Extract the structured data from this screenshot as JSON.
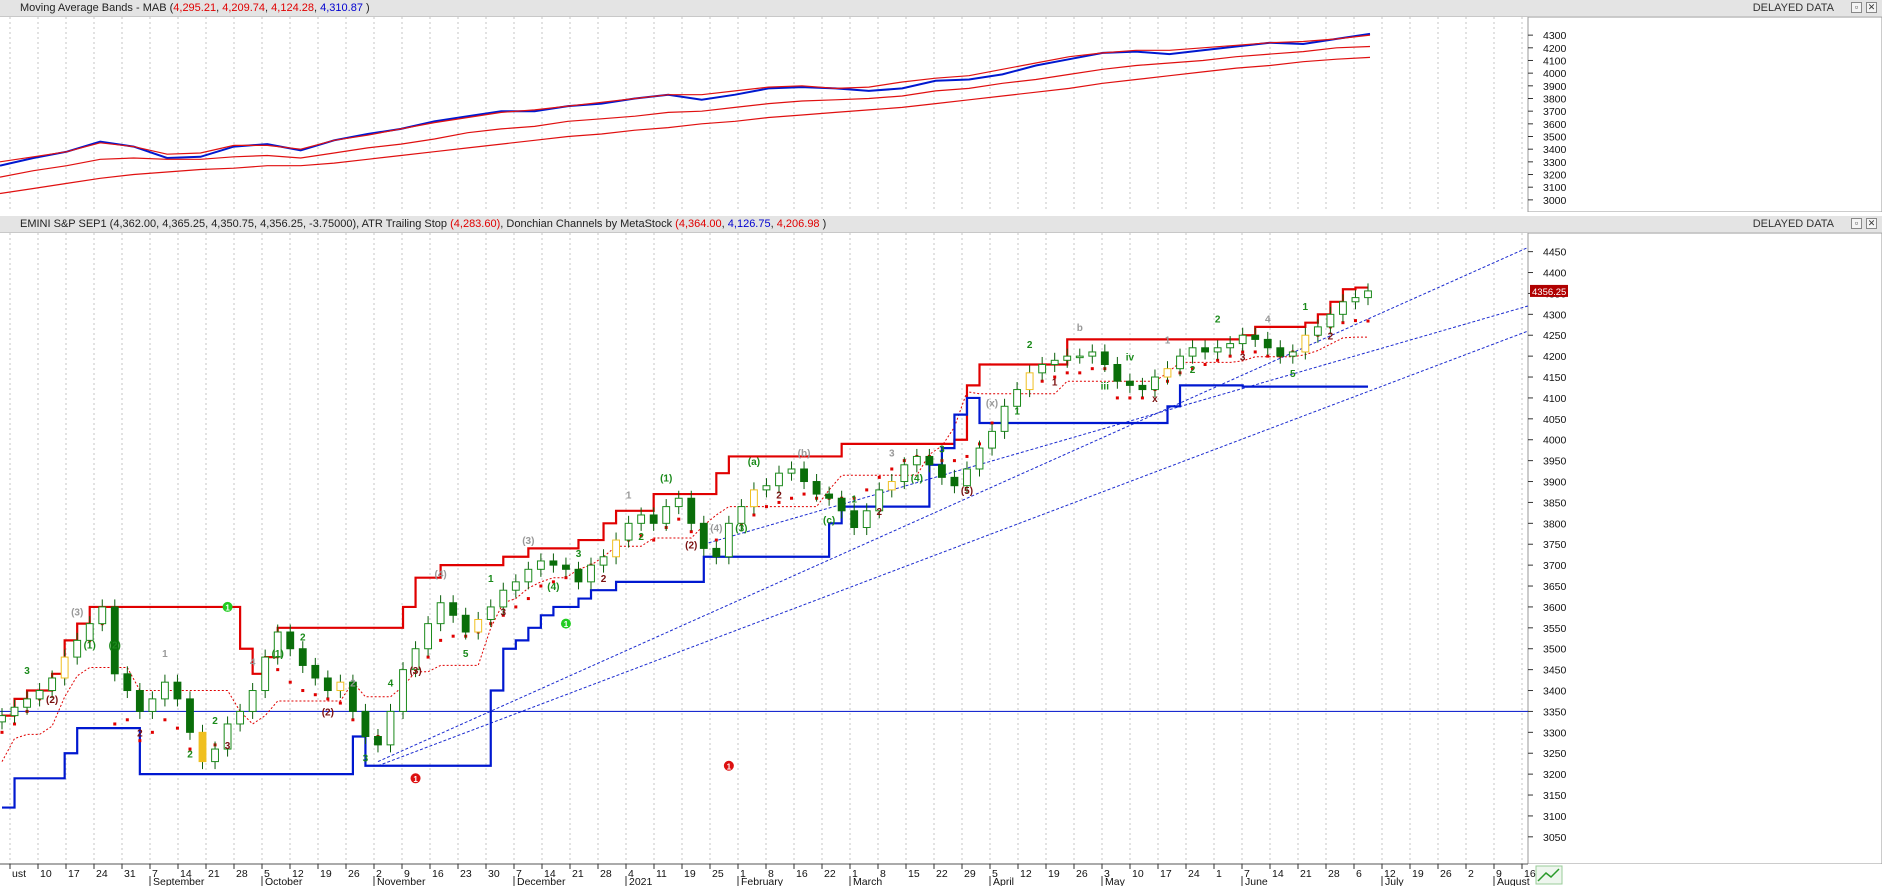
{
  "top_panel": {
    "title_prefix": "Moving Average Bands - MAB (",
    "values": [
      "4,295.21",
      "4,209.74",
      "4,124.28",
      "4,310.87"
    ],
    "title_suffix": ")",
    "delayed": "DELAYED DATA"
  },
  "bottom_panel": {
    "symbol": "EMINI S&P SEP1 (4,362.00, 4,365.25, 4,350.75, 4,356.25, -3.75000)",
    "atr_label": "ATR Trailing Stop",
    "atr_value": "(4,283.60)",
    "donchian_label": "Donchian Channels by MetaStock",
    "donchian_values": [
      "(4,364.00",
      "4,126.75",
      "4,206.98",
      ")"
    ],
    "delayed": "DELAYED DATA",
    "last_price_tag": "4356.25"
  },
  "window_buttons": [
    "restore-icon",
    "close-icon"
  ],
  "colors": {
    "price_up": "#1a8a1a",
    "price_down": "#0a6e0a",
    "neutral": "#f0c020",
    "atr": "#e00000",
    "donchian_upper": "#e00000",
    "donchian_lower": "#0018d0",
    "mab": "#e01010",
    "mab_price": "#0018d0"
  },
  "x_axis": {
    "ticks": [
      "ust",
      "10",
      "17",
      "24",
      "31",
      "7",
      "14",
      "21",
      "28",
      "5",
      "12",
      "19",
      "26",
      "2",
      "9",
      "16",
      "23",
      "30",
      "7",
      "14",
      "21",
      "28",
      "4",
      "11",
      "19",
      "25",
      "1",
      "8",
      "16",
      "22",
      "1",
      "8",
      "15",
      "22",
      "29",
      "5",
      "12",
      "19",
      "26",
      "3",
      "10",
      "17",
      "24",
      "1",
      "7",
      "14",
      "21",
      "28",
      "6",
      "12",
      "19",
      "26",
      "2",
      "9",
      "16"
    ],
    "months": [
      "September",
      "October",
      "November",
      "December",
      "2021",
      "February",
      "March",
      "April",
      "May",
      "June",
      "July",
      "August"
    ]
  },
  "chart_data": [
    {
      "type": "line",
      "title": "Moving Average Bands - MAB",
      "ylim": [
        2920,
        4380
      ],
      "y_ticks": [
        3000,
        3100,
        3200,
        3300,
        3400,
        3500,
        3600,
        3700,
        3800,
        3900,
        4000,
        4100,
        4200,
        4300
      ],
      "series": [
        {
          "name": "price",
          "values": [
            3270,
            3330,
            3380,
            3460,
            3420,
            3330,
            3340,
            3420,
            3440,
            3390,
            3470,
            3520,
            3560,
            3620,
            3660,
            3700,
            3700,
            3740,
            3760,
            3800,
            3830,
            3790,
            3830,
            3880,
            3890,
            3880,
            3860,
            3880,
            3940,
            3950,
            3990,
            4060,
            4110,
            4160,
            4170,
            4150,
            4180,
            4210,
            4240,
            4230,
            4270,
            4310
          ]
        },
        {
          "name": "upper",
          "values": [
            3300,
            3340,
            3380,
            3450,
            3420,
            3360,
            3370,
            3430,
            3430,
            3400,
            3470,
            3510,
            3560,
            3610,
            3650,
            3690,
            3710,
            3740,
            3770,
            3800,
            3830,
            3830,
            3860,
            3890,
            3900,
            3880,
            3890,
            3930,
            3960,
            3980,
            4030,
            4080,
            4130,
            4160,
            4180,
            4180,
            4200,
            4220,
            4240,
            4250,
            4270,
            4300
          ]
        },
        {
          "name": "middle",
          "values": [
            3180,
            3230,
            3270,
            3320,
            3330,
            3320,
            3320,
            3340,
            3350,
            3330,
            3370,
            3410,
            3440,
            3480,
            3530,
            3560,
            3580,
            3620,
            3640,
            3660,
            3690,
            3700,
            3730,
            3760,
            3780,
            3790,
            3800,
            3820,
            3860,
            3880,
            3920,
            3950,
            3990,
            4030,
            4060,
            4080,
            4100,
            4130,
            4150,
            4170,
            4200,
            4210
          ]
        },
        {
          "name": "lower",
          "values": [
            3050,
            3090,
            3130,
            3170,
            3200,
            3220,
            3240,
            3250,
            3270,
            3270,
            3290,
            3320,
            3350,
            3380,
            3410,
            3440,
            3470,
            3500,
            3520,
            3550,
            3570,
            3600,
            3620,
            3650,
            3670,
            3690,
            3710,
            3730,
            3760,
            3790,
            3820,
            3850,
            3880,
            3920,
            3950,
            3980,
            4010,
            4040,
            4060,
            4090,
            4110,
            4124
          ]
        }
      ]
    },
    {
      "type": "line",
      "title": "EMINI S&P SEP1",
      "ylim": [
        2985,
        4485
      ],
      "y_ticks": [
        3050,
        3100,
        3150,
        3200,
        3250,
        3300,
        3350,
        3400,
        3450,
        3500,
        3550,
        3600,
        3650,
        3700,
        3750,
        3800,
        3850,
        3900,
        3950,
        4000,
        4050,
        4100,
        4150,
        4200,
        4250,
        4300,
        4350,
        4400,
        4450
      ],
      "hline": 3350,
      "price_close": [
        3340,
        3360,
        3380,
        3400,
        3430,
        3480,
        3520,
        3560,
        3600,
        3440,
        3400,
        3350,
        3380,
        3420,
        3380,
        3300,
        3230,
        3260,
        3320,
        3350,
        3400,
        3480,
        3540,
        3500,
        3460,
        3430,
        3400,
        3420,
        3350,
        3290,
        3270,
        3350,
        3450,
        3500,
        3560,
        3610,
        3580,
        3540,
        3570,
        3600,
        3640,
        3660,
        3690,
        3710,
        3700,
        3690,
        3660,
        3700,
        3720,
        3760,
        3800,
        3820,
        3800,
        3840,
        3860,
        3800,
        3740,
        3720,
        3800,
        3840,
        3880,
        3890,
        3920,
        3930,
        3900,
        3870,
        3860,
        3830,
        3790,
        3830,
        3880,
        3900,
        3940,
        3960,
        3940,
        3910,
        3890,
        3930,
        3980,
        4020,
        4080,
        4120,
        4160,
        4180,
        4190,
        4200,
        4200,
        4210,
        4180,
        4140,
        4130,
        4120,
        4150,
        4170,
        4200,
        4220,
        4210,
        4220,
        4230,
        4250,
        4240,
        4220,
        4200,
        4210,
        4250,
        4270,
        4300,
        4330,
        4340,
        4356
      ],
      "atr_stop": [
        3300,
        3320,
        3350,
        3380,
        3410,
        3450,
        3490,
        3520,
        3560,
        3320,
        3330,
        3280,
        3300,
        3330,
        3310,
        3260,
        3250,
        3270,
        3300,
        3330,
        3380,
        3420,
        3450,
        3420,
        3400,
        3390,
        3380,
        3370,
        3330,
        3300,
        3290,
        3340,
        3410,
        3450,
        3480,
        3520,
        3530,
        3530,
        3540,
        3560,
        3580,
        3600,
        3620,
        3650,
        3660,
        3670,
        3680,
        3700,
        3710,
        3730,
        3760,
        3770,
        3760,
        3790,
        3810,
        3780,
        3760,
        3760,
        3780,
        3800,
        3820,
        3840,
        3850,
        3860,
        3870,
        3860,
        3860,
        3860,
        3860,
        3880,
        3910,
        3930,
        3950,
        3960,
        3960,
        3950,
        3950,
        3960,
        3990,
        4040,
        4070,
        4100,
        4130,
        4140,
        4150,
        4160,
        4160,
        4170,
        4170,
        4100,
        4100,
        4100,
        4120,
        4140,
        4160,
        4170,
        4180,
        4190,
        4200,
        4210,
        4210,
        4200,
        4200,
        4210,
        4230,
        4250,
        4270,
        4280,
        4285,
        4284
      ],
      "donchian_upper": [
        3340,
        3380,
        3400,
        3400,
        3440,
        3520,
        3560,
        3600,
        3600,
        3600,
        3600,
        3600,
        3600,
        3600,
        3600,
        3600,
        3600,
        3600,
        3600,
        3500,
        3440,
        3480,
        3550,
        3550,
        3550,
        3550,
        3550,
        3550,
        3550,
        3550,
        3550,
        3550,
        3600,
        3670,
        3670,
        3700,
        3700,
        3700,
        3700,
        3700,
        3720,
        3720,
        3740,
        3740,
        3740,
        3740,
        3760,
        3760,
        3800,
        3830,
        3830,
        3830,
        3870,
        3870,
        3870,
        3870,
        3870,
        3920,
        3960,
        3960,
        3960,
        3960,
        3960,
        3960,
        3960,
        3960,
        3960,
        3990,
        3990,
        3990,
        3990,
        3990,
        3990,
        3990,
        3990,
        3990,
        4000,
        4130,
        4180,
        4180,
        4180,
        4180,
        4180,
        4180,
        4180,
        4240,
        4240,
        4240,
        4240,
        4240,
        4240,
        4240,
        4240,
        4240,
        4240,
        4240,
        4240,
        4240,
        4240,
        4250,
        4270,
        4270,
        4270,
        4270,
        4280,
        4300,
        4330,
        4360,
        4364,
        4364
      ],
      "donchian_lower": [
        3120,
        3190,
        3190,
        3190,
        3190,
        3250,
        3310,
        3310,
        3310,
        3310,
        3310,
        3200,
        3200,
        3200,
        3200,
        3200,
        3200,
        3200,
        3200,
        3200,
        3200,
        3200,
        3200,
        3200,
        3200,
        3200,
        3200,
        3200,
        3290,
        3220,
        3220,
        3220,
        3220,
        3220,
        3220,
        3220,
        3220,
        3220,
        3220,
        3400,
        3500,
        3520,
        3550,
        3580,
        3600,
        3600,
        3620,
        3640,
        3640,
        3660,
        3660,
        3660,
        3660,
        3660,
        3660,
        3660,
        3720,
        3720,
        3720,
        3720,
        3720,
        3720,
        3720,
        3720,
        3720,
        3720,
        3800,
        3840,
        3840,
        3840,
        3840,
        3840,
        3840,
        3840,
        3940,
        3980,
        4060,
        4100,
        4040,
        4040,
        4040,
        4040,
        4040,
        4040,
        4040,
        4040,
        4040,
        4040,
        4040,
        4040,
        4040,
        4040,
        4040,
        4080,
        4130,
        4130,
        4130,
        4130,
        4130,
        4127,
        4127,
        4127,
        4127,
        4127,
        4127,
        4127,
        4127,
        4127,
        4127,
        4127
      ]
    }
  ],
  "annotations": {
    "wave_labels": [
      "3",
      "(2)",
      "(3)",
      "(1)",
      "(2)",
      "2",
      "1",
      "2",
      "2",
      "3",
      "4",
      "(1)",
      "2",
      "(2)",
      "2",
      "3",
      "4",
      "(3)",
      "(4)",
      "5",
      "1",
      "3",
      "(3)",
      "(4)",
      "3",
      "2",
      "1",
      "2",
      "(1)",
      "(2)",
      "(4)",
      "(3)",
      "(a)",
      "2",
      "(b)",
      "(c)",
      "1",
      "2",
      "3",
      "(4)",
      "3",
      "(5)",
      "(x)",
      "1",
      "2",
      "1",
      "b",
      "iii",
      "iv",
      "x",
      "1",
      "2",
      "2",
      "3",
      "4",
      "5",
      "1",
      "2"
    ],
    "markers": [
      {
        "text": "1",
        "kind": "green-dot"
      },
      {
        "text": "1",
        "kind": "green-dot"
      },
      {
        "text": "1",
        "kind": "red-dot"
      },
      {
        "text": "1",
        "kind": "red-dot"
      }
    ]
  }
}
